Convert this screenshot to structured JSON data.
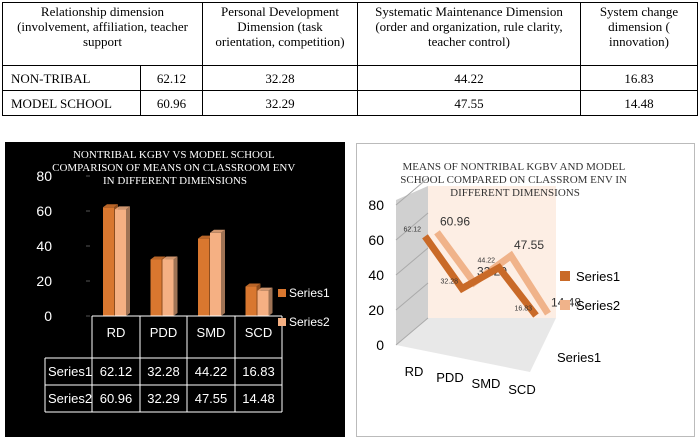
{
  "table": {
    "header": [
      "Relationship dimension (involvement, affiliation, teacher support",
      "Personal Development Dimension (task orientation, competition)",
      "Systematic Maintenance Dimension (order and organization, rule clarity, teacher control)",
      "System change dimension ( innovation)"
    ],
    "rows": [
      [
        "NON-TRIBAL",
        62.12,
        32.28,
        44.22,
        16.83
      ],
      [
        "MODEL SCHOOL",
        60.96,
        32.29,
        47.55,
        14.48
      ]
    ]
  },
  "chart_data": [
    {
      "type": "bar",
      "title": "NONTRIBAL KGBV VS MODEL SCHOOL COMPARISON OF MEANS ON CLASSROOM ENV IN DIFFERENT DIMENSIONS",
      "categories": [
        "RD",
        "PDD",
        "SMD",
        "SCD"
      ],
      "series": [
        {
          "name": "Series1",
          "color": "#d9772f",
          "values": [
            62.12,
            32.28,
            44.22,
            16.83
          ]
        },
        {
          "name": "Series2",
          "color": "#f5b083",
          "values": [
            60.96,
            32.29,
            47.55,
            14.48
          ]
        }
      ],
      "ylim": [
        0,
        80
      ],
      "yticks": [
        0,
        20,
        40,
        60,
        80
      ],
      "data_table": true
    },
    {
      "type": "line",
      "title": "MEANS OF NONTRIBAL KGBV AND MODEL SCHOOL COMPARED ON CLASSROM ENV IN DIFFERENT DIMENSIONS",
      "categories": [
        "RD",
        "PDD",
        "SMD",
        "SCD"
      ],
      "series": [
        {
          "name": "Series1",
          "color": "#c96a28",
          "values": [
            62.12,
            32.28,
            44.22,
            16.83
          ]
        },
        {
          "name": "Series2",
          "color": "#f0b38a",
          "values": [
            60.96,
            32.29,
            47.55,
            14.48
          ]
        }
      ],
      "ylim": [
        0,
        80
      ],
      "yticks": [
        0,
        20,
        40,
        60,
        80
      ],
      "depth_axis_label": "Series1"
    }
  ]
}
